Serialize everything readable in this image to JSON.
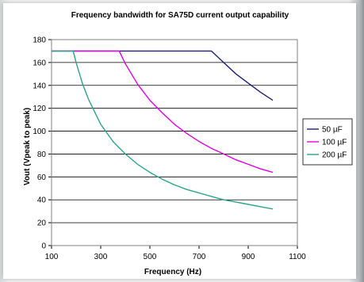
{
  "chart_data": {
    "type": "line",
    "title": "Frequency bandwidth for SA75D current output capability",
    "xlabel": "Frequency (Hz)",
    "ylabel": "Vout (Vpeak to peak)",
    "xlim": [
      100,
      1100
    ],
    "ylim": [
      0,
      180
    ],
    "xticks": [
      100,
      300,
      500,
      700,
      900,
      1100
    ],
    "yticks": [
      0,
      20,
      40,
      60,
      80,
      100,
      120,
      140,
      160,
      180
    ],
    "grid": "horizontal",
    "legend_position": "right",
    "series": [
      {
        "name": "50 µF",
        "color": "#1f1f6e",
        "x": [
          100,
          200,
          300,
          400,
          500,
          600,
          700,
          750,
          800,
          850,
          900,
          950,
          1000
        ],
        "y": [
          170,
          170,
          170,
          170,
          170,
          170,
          170,
          170,
          160,
          150,
          142,
          134,
          127
        ]
      },
      {
        "name": "100 µF",
        "color": "#e000e0",
        "x": [
          100,
          200,
          300,
          375,
          400,
          450,
          500,
          550,
          600,
          650,
          700,
          750,
          800,
          850,
          900,
          950,
          1000
        ],
        "y": [
          170,
          170,
          170,
          170,
          159,
          141,
          127,
          116,
          106,
          98,
          91,
          85,
          80,
          75,
          71,
          67,
          64
        ]
      },
      {
        "name": "200 µF",
        "color": "#2aa58a",
        "x": [
          100,
          150,
          188,
          200,
          225,
          250,
          300,
          350,
          400,
          450,
          500,
          550,
          600,
          650,
          700,
          750,
          800,
          850,
          900,
          950,
          1000
        ],
        "y": [
          170,
          170,
          170,
          160,
          142,
          128,
          106,
          91,
          80,
          71,
          64,
          58,
          53,
          49,
          46,
          43,
          40,
          38,
          36,
          34,
          32
        ]
      }
    ]
  }
}
